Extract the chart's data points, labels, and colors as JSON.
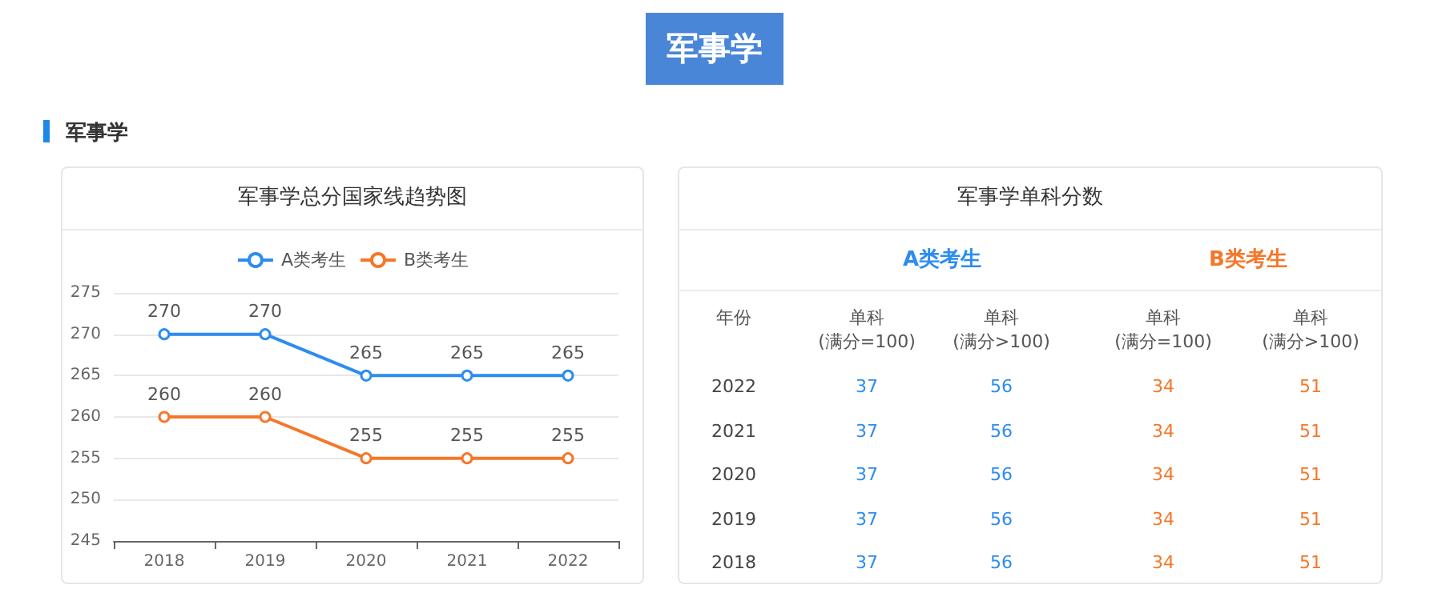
{
  "chart_data": [
    {
      "type": "line",
      "title": "军事学总分国家线趋势图",
      "annotations": [
        "军事学",
        "军事学"
      ],
      "categories": [
        "2018",
        "2019",
        "2020",
        "2021",
        "2022"
      ],
      "series": [
        {
          "name": "A类考生",
          "color": "#2d8cf0",
          "values": [
            270,
            270,
            265,
            265,
            265
          ]
        },
        {
          "name": "B类考生",
          "color": "#f5772a",
          "values": [
            260,
            260,
            255,
            255,
            255
          ]
        }
      ],
      "ylim": [
        245,
        275
      ],
      "yticks": [
        245,
        250,
        255,
        260,
        265,
        270,
        275
      ],
      "grid": "y",
      "legend": "top",
      "marker": "circle",
      "line_style": "solid",
      "data_labels": true
    },
    {
      "type": "heatmap",
      "title": "军事学单科分数",
      "ylabel": "年份",
      "annotations": [
        "A类考生",
        "B类考生"
      ],
      "categories": [
        "单科\n(满分=100)",
        "单科\n(满分>100)",
        "单科\n(满分=100)",
        "单科\n(满分>100)"
      ],
      "y_categories": [
        "2022",
        "2021",
        "2020",
        "2019",
        "2018"
      ],
      "colors": [
        "#2d8cf0",
        "#2d8cf0",
        "#f5772a",
        "#f5772a"
      ],
      "data_labels": true,
      "cells": [
        [
          37,
          56,
          34,
          51
        ],
        [
          37,
          56,
          34,
          51
        ],
        [
          37,
          56,
          34,
          51
        ],
        [
          37,
          56,
          34,
          51
        ],
        [
          37,
          56,
          34,
          51
        ]
      ]
    }
  ]
}
